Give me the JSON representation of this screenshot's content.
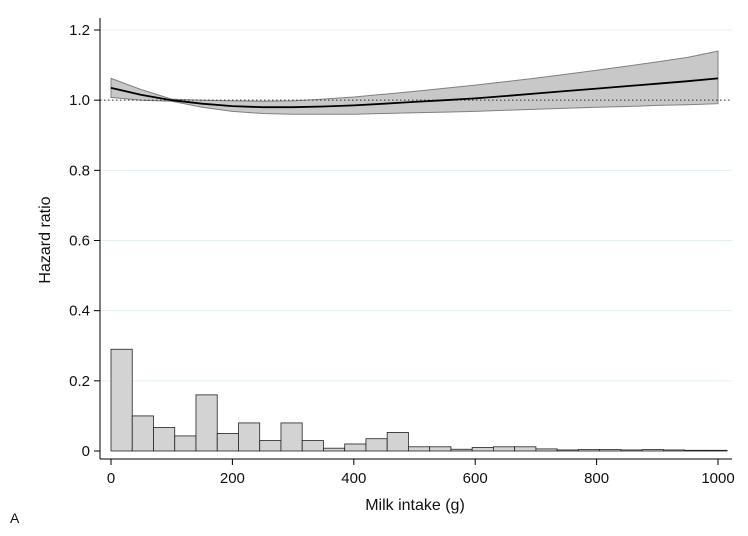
{
  "chart_data": {
    "type": "line",
    "xlabel": "Milk intake (g)",
    "ylabel": "Hazard ratio",
    "xlim": [
      -15,
      1020
    ],
    "ylim": [
      0,
      1.2
    ],
    "x_ticks": [
      0,
      200,
      400,
      600,
      800,
      1000
    ],
    "x_tick_labels": [
      "0",
      "200",
      "400",
      "600",
      "800",
      "1000"
    ],
    "y_ticks": [
      0,
      0.2,
      0.4,
      0.6,
      0.8,
      1.0,
      1.2
    ],
    "y_tick_labels": [
      "0",
      "0.2",
      "0.4",
      "0.6",
      "0.8",
      "1.0",
      "1.2"
    ],
    "grid": "horizontal",
    "reference_line": 1.0,
    "series": [
      {
        "type": "line",
        "x": [
          0,
          50,
          100,
          150,
          200,
          250,
          300,
          350,
          400,
          450,
          500,
          550,
          600,
          650,
          700,
          750,
          800,
          850,
          900,
          950,
          1000
        ],
        "values": [
          1.035,
          1.015,
          1.0,
          0.99,
          0.983,
          0.98,
          0.98,
          0.982,
          0.985,
          0.99,
          0.995,
          1.0,
          1.005,
          1.012,
          1.019,
          1.026,
          1.033,
          1.04,
          1.047,
          1.054,
          1.062
        ],
        "upper": [
          1.062,
          1.03,
          1.003,
          1.0,
          0.998,
          0.997,
          0.998,
          1.003,
          1.009,
          1.017,
          1.025,
          1.034,
          1.043,
          1.053,
          1.063,
          1.074,
          1.085,
          1.097,
          1.109,
          1.122,
          1.14
        ],
        "lower": [
          1.008,
          1.0,
          0.997,
          0.98,
          0.968,
          0.962,
          0.96,
          0.96,
          0.96,
          0.962,
          0.964,
          0.966,
          0.968,
          0.971,
          0.974,
          0.977,
          0.98,
          0.982,
          0.985,
          0.987,
          0.99
        ]
      },
      {
        "type": "histogram",
        "bin_width": 35,
        "bins": [
          0,
          35,
          70,
          105,
          140,
          175,
          210,
          245,
          280,
          315,
          350,
          385,
          420,
          455,
          490,
          525,
          560,
          595,
          630,
          665,
          700,
          735,
          770,
          805,
          840,
          875,
          910,
          945,
          980
        ],
        "values": [
          0.29,
          0.1,
          0.067,
          0.043,
          0.16,
          0.05,
          0.08,
          0.03,
          0.08,
          0.03,
          0.008,
          0.02,
          0.035,
          0.053,
          0.012,
          0.012,
          0.005,
          0.01,
          0.012,
          0.012,
          0.006,
          0.003,
          0.004,
          0.004,
          0.003,
          0.004,
          0.003,
          0.002,
          0.002
        ]
      }
    ]
  },
  "panel_label": "A",
  "colors": {
    "band_fill": "#c8c8c8",
    "band_stroke": "#808080",
    "bar_fill": "#d3d3d3",
    "grid": "#e3efef",
    "line": "#000000"
  }
}
